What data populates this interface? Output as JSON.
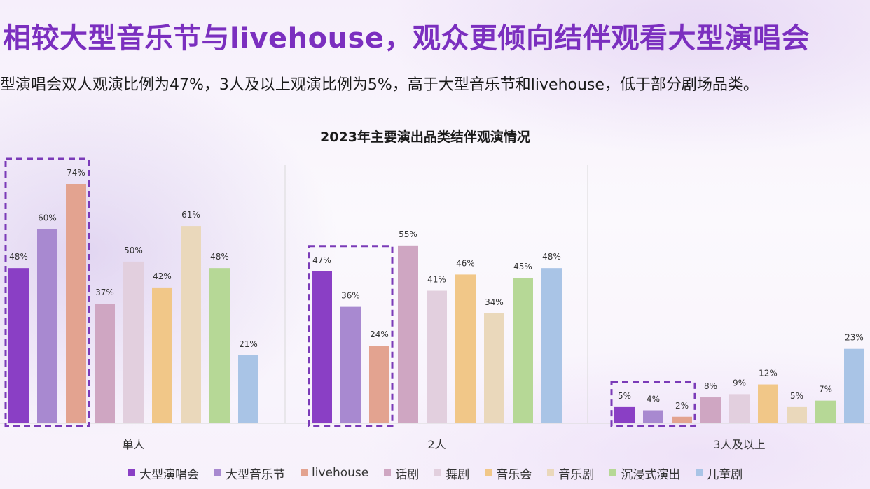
{
  "headline": "相较大型音乐节与livehouse，观众更倾向结伴观看大型演唱会",
  "subline": "型演唱会双人观演比例为47%，3人及以上观演比例为5%，高于大型音乐节和livehouse，低于部分剧场品类。",
  "chart_data": {
    "type": "bar",
    "title": "2023年主要演出品类结伴观演情况",
    "categories": [
      "单人",
      "2人",
      "3人及以上"
    ],
    "value_suffix": "%",
    "ylim": [
      0,
      80
    ],
    "grid": false,
    "legend_position": "bottom",
    "highlighted_series_count": 3,
    "series": [
      {
        "name": "大型演唱会",
        "color": "#8a3fc5",
        "values": [
          48,
          47,
          5
        ]
      },
      {
        "name": "大型音乐节",
        "color": "#a889d0",
        "values": [
          60,
          36,
          4
        ]
      },
      {
        "name": "livehouse",
        "color": "#e3a390",
        "values": [
          74,
          24,
          2
        ]
      },
      {
        "name": "话剧",
        "color": "#cfa6c2",
        "values": [
          37,
          55,
          8
        ]
      },
      {
        "name": "舞剧",
        "color": "#e2cfde",
        "values": [
          50,
          41,
          9
        ]
      },
      {
        "name": "音乐会",
        "color": "#f1c788",
        "values": [
          42,
          46,
          12
        ]
      },
      {
        "name": "音乐剧",
        "color": "#ead8bb",
        "values": [
          61,
          34,
          5
        ]
      },
      {
        "name": "沉浸式演出",
        "color": "#b6d896",
        "values": [
          48,
          45,
          7
        ]
      },
      {
        "name": "儿童剧",
        "color": "#a9c4e6",
        "values": [
          21,
          48,
          23
        ]
      }
    ]
  }
}
